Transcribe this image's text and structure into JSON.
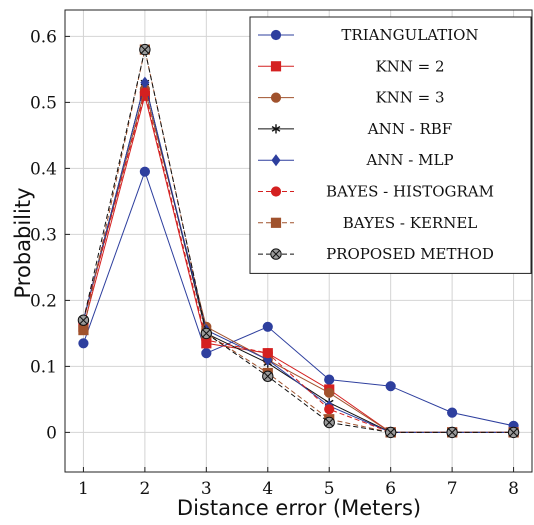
{
  "chart_data": {
    "type": "line",
    "title": "",
    "xlabel": "Distance error (Meters)",
    "ylabel": "Probability",
    "x": [
      1,
      2,
      3,
      4,
      5,
      6,
      7,
      8
    ],
    "xticks": [
      "1",
      "2",
      "3",
      "4",
      "5",
      "6",
      "7",
      "8"
    ],
    "yticks": [
      "0",
      "0.1",
      "0.2",
      "0.3",
      "0.4",
      "0.5",
      "0.6"
    ],
    "xlim": [
      0.7,
      8.3
    ],
    "ylim": [
      -0.06,
      0.64
    ],
    "grid": true,
    "legend_position": "top-right",
    "series": [
      {
        "name": "TRIANGULATION",
        "color": "#2e3f9e",
        "marker": "circle",
        "dash": "solid",
        "values": [
          0.135,
          0.395,
          0.12,
          0.16,
          0.08,
          0.07,
          0.03,
          0.01
        ]
      },
      {
        "name": "KNN = 2",
        "color": "#d42020",
        "marker": "square",
        "dash": "solid",
        "values": [
          0.16,
          0.51,
          0.135,
          0.12,
          0.065,
          0,
          0,
          0
        ]
      },
      {
        "name": "KNN = 3",
        "color": "#a0522d",
        "marker": "circle",
        "dash": "solid",
        "values": [
          0.17,
          0.52,
          0.16,
          0.11,
          0.06,
          0,
          0,
          0
        ]
      },
      {
        "name": "ANN - RBF",
        "color": "#111111",
        "marker": "star",
        "dash": "solid",
        "values": [
          0.17,
          0.53,
          0.15,
          0.105,
          0.045,
          0,
          0,
          0
        ]
      },
      {
        "name": "ANN - MLP",
        "color": "#2e3f9e",
        "marker": "diamond",
        "dash": "solid",
        "values": [
          0.17,
          0.53,
          0.155,
          0.11,
          0.04,
          0,
          0,
          0
        ]
      },
      {
        "name": "BAYES - HISTOGRAM",
        "color": "#d42020",
        "marker": "circle",
        "dash": "dashed",
        "values": [
          0.17,
          0.515,
          0.14,
          0.12,
          0.035,
          0,
          0,
          0
        ]
      },
      {
        "name": "BAYES - KERNEL",
        "color": "#a0522d",
        "marker": "square",
        "dash": "dashed",
        "values": [
          0.155,
          0.58,
          0.15,
          0.09,
          0.02,
          0,
          0,
          0
        ]
      },
      {
        "name": "PROPOSED METHOD",
        "color": "#111111",
        "marker": "otimes",
        "dash": "dashed",
        "values": [
          0.17,
          0.58,
          0.15,
          0.085,
          0.015,
          0,
          0,
          0
        ]
      }
    ]
  }
}
